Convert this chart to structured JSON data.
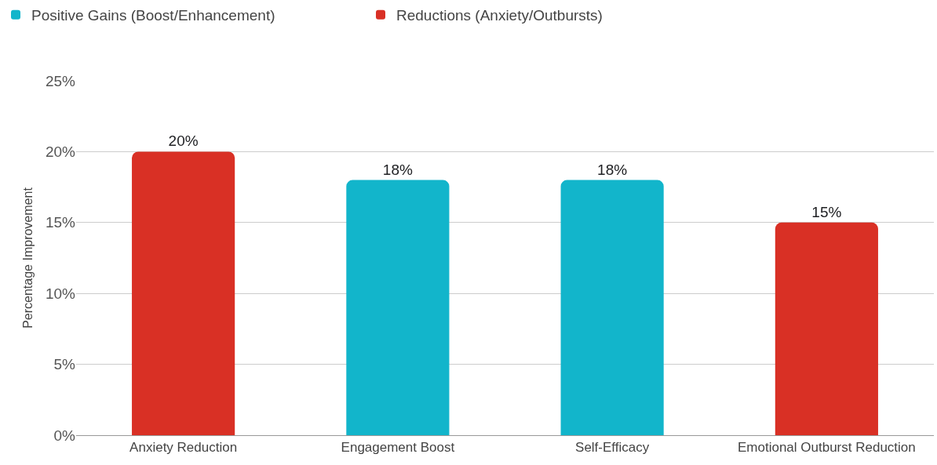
{
  "chart_data": {
    "type": "bar",
    "ylabel": "Percentage Improvement",
    "categories": [
      "Anxiety Reduction",
      "Engagement Boost",
      "Self-Efficacy",
      "Emotional Outburst Reduction"
    ],
    "series": [
      {
        "name": "Positive Gains (Boost/Enhancement)",
        "color": "#12b5cb",
        "values": [
          null,
          18,
          18,
          null
        ],
        "value_labels": [
          null,
          "18%",
          "18%",
          null
        ]
      },
      {
        "name": "Reductions (Anxiety/Outbursts)",
        "color": "#d93025",
        "values": [
          20,
          null,
          null,
          15
        ],
        "value_labels": [
          "20%",
          null,
          null,
          "15%"
        ]
      }
    ],
    "stacked": true,
    "ylim": [
      0,
      25
    ],
    "yticks": [
      {
        "value": 0,
        "label": "0%"
      },
      {
        "value": 5,
        "label": "5%"
      },
      {
        "value": 10,
        "label": "10%"
      },
      {
        "value": 15,
        "label": "15%"
      },
      {
        "value": 20,
        "label": "20%"
      },
      {
        "value": 25,
        "label": "25%"
      }
    ],
    "grid": "y",
    "legend": "top left"
  }
}
